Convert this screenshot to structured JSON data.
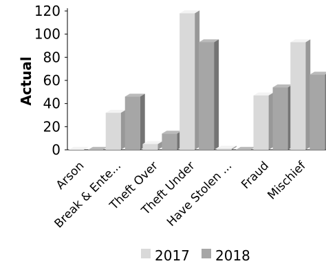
{
  "chart_data": {
    "type": "bar",
    "title": "",
    "xlabel": "",
    "ylabel": "Actual",
    "ylim": [
      0,
      120
    ],
    "yticks": [
      0,
      20,
      40,
      60,
      80,
      100,
      120
    ],
    "categories": [
      "Arson",
      "Break & Ente...",
      "Theft Over",
      "Theft Under",
      "Have Stolen ...",
      "Fraud",
      "Mischief"
    ],
    "series": [
      {
        "name": "2017",
        "color": "#d9d9d9",
        "values": [
          0,
          32,
          5,
          118,
          1,
          47,
          93
        ]
      },
      {
        "name": "2018",
        "color": "#a6a6a6",
        "values": [
          0,
          46,
          14,
          93,
          0,
          54,
          65
        ]
      }
    ],
    "grid": false,
    "legend": "bottom",
    "style": "3d-bar"
  }
}
